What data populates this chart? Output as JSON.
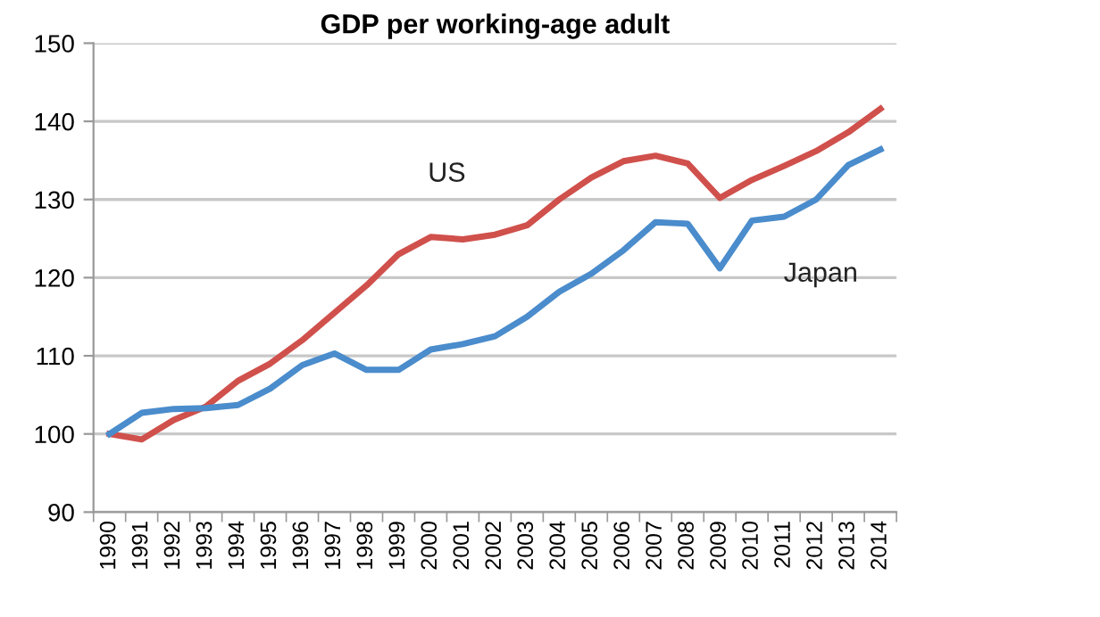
{
  "chart_data": {
    "type": "line",
    "title": "GDP per working-age adult",
    "categories": [
      "1990",
      "1991",
      "1992",
      "1993",
      "1994",
      "1995",
      "1996",
      "1997",
      "1998",
      "1999",
      "2000",
      "2001",
      "2002",
      "2003",
      "2004",
      "2005",
      "2006",
      "2007",
      "2008",
      "2009",
      "2010",
      "2011",
      "2012",
      "2013",
      "2014"
    ],
    "series": [
      {
        "name": "US",
        "color": "#d0504c",
        "values": [
          100,
          99.3,
          101.8,
          103.5,
          106.8,
          109,
          112,
          115.5,
          119,
          123,
          125.2,
          124.9,
          125.5,
          126.7,
          130,
          132.8,
          134.9,
          135.6,
          134.6,
          130.2,
          132.5,
          134.3,
          136.2,
          138.6,
          141.6
        ]
      },
      {
        "name": "Japan",
        "color": "#4a8ccc",
        "values": [
          100,
          102.7,
          103.2,
          103.3,
          103.7,
          105.8,
          108.8,
          110.3,
          108.2,
          108.2,
          110.8,
          111.5,
          112.5,
          115,
          118.2,
          120.5,
          123.5,
          127.1,
          126.9,
          121.2,
          127.3,
          127.8,
          130,
          134.4,
          136.4
        ]
      }
    ],
    "ylim": [
      90,
      150
    ],
    "yticks": [
      90,
      100,
      110,
      120,
      130,
      140,
      150
    ],
    "grid": "y",
    "legend": false,
    "marker": "none",
    "line_style": "solid"
  }
}
